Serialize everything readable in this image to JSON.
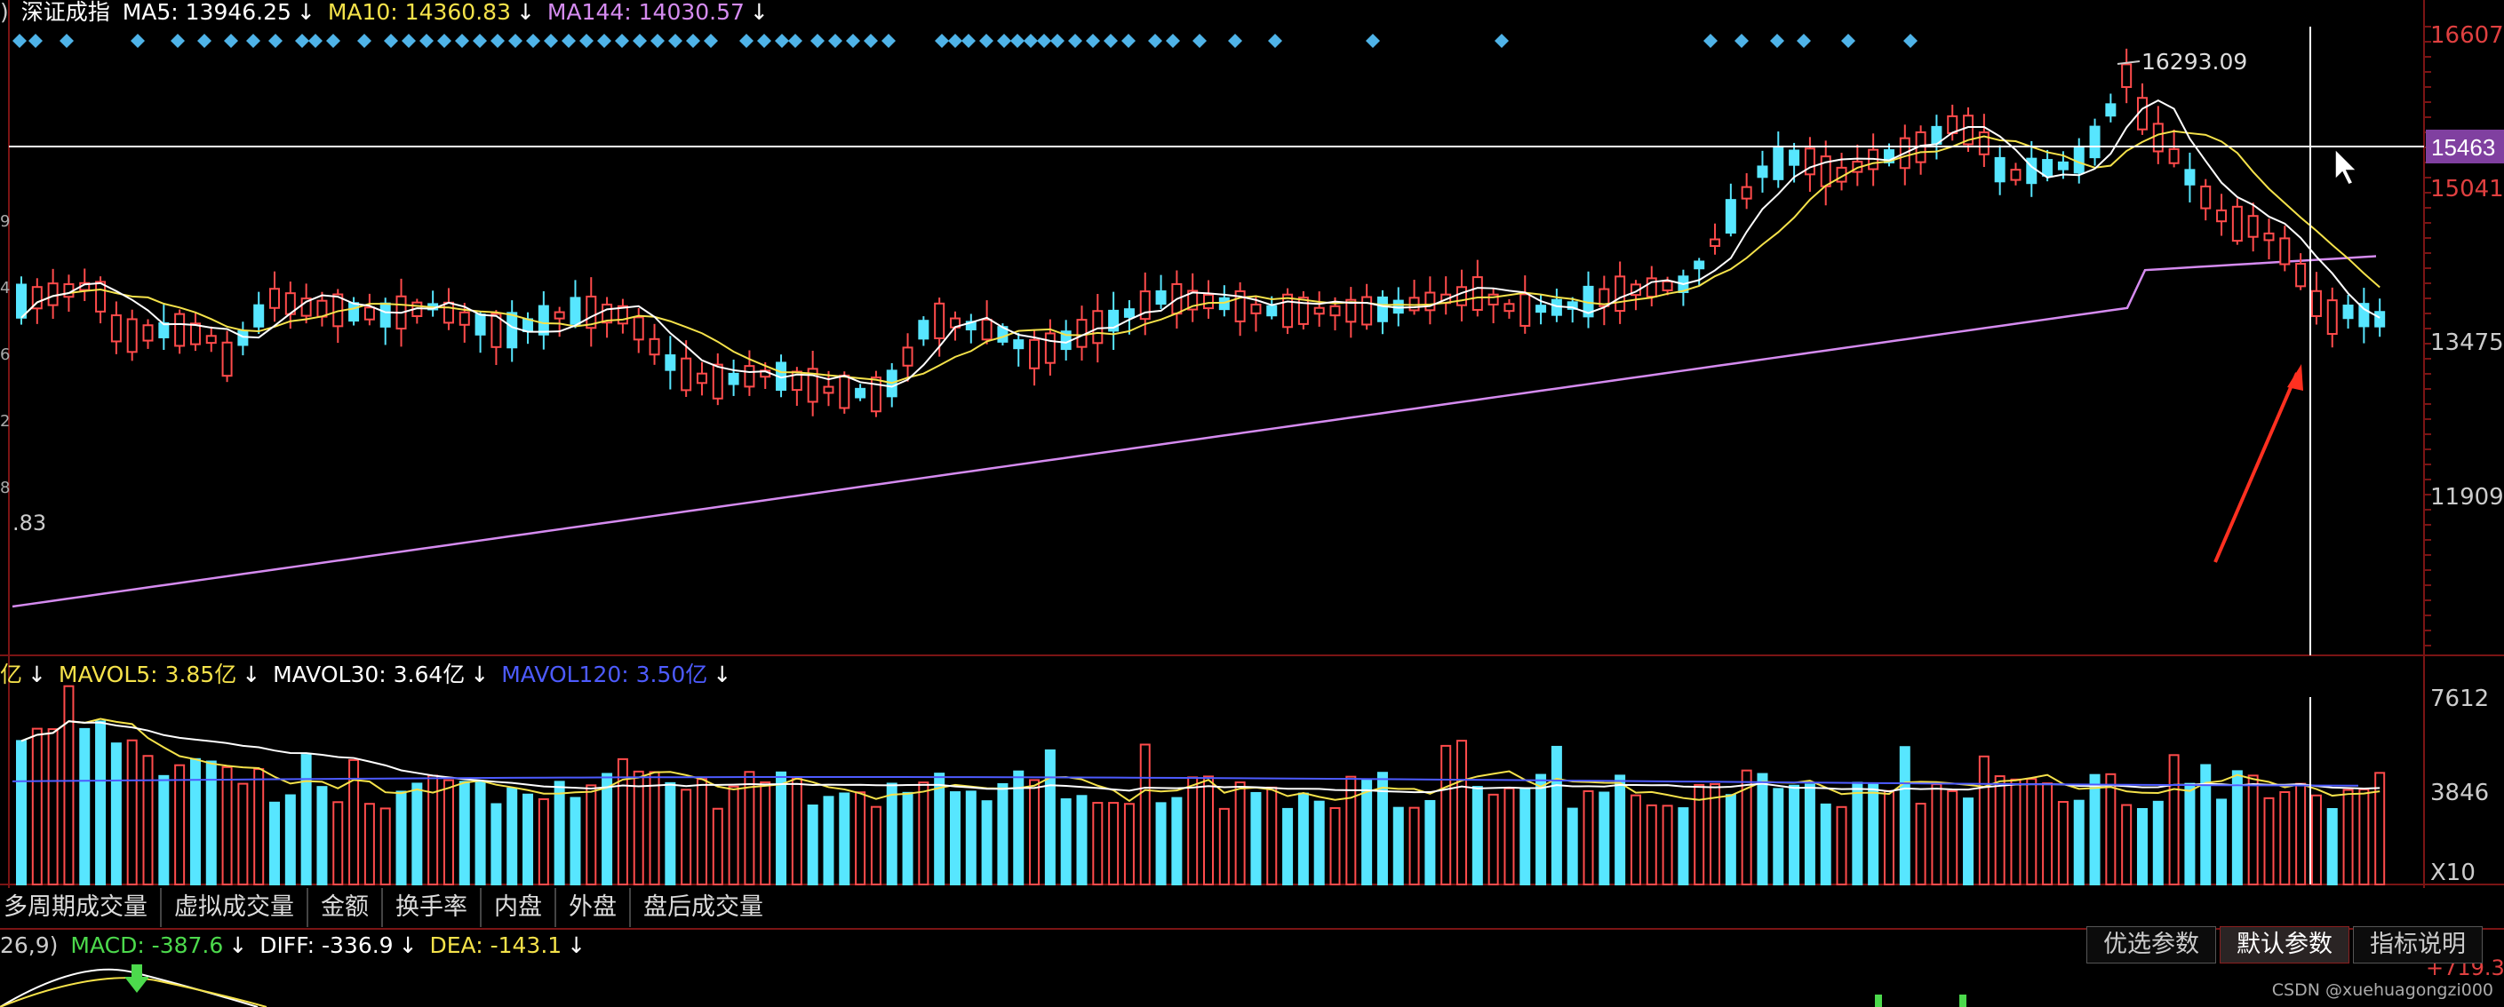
{
  "price_legend": {
    "prefix": ")",
    "index_name": "深证成指",
    "ma5": "MA5: 13946.25",
    "ma10": "MA10: 14360.83",
    "ma144": "MA144: 14030.57",
    "arrow": "↓"
  },
  "price_axis": [
    "16607",
    "15041",
    "13475",
    "11909"
  ],
  "crosshair_price": "15463",
  "peak_label": "16293.09",
  "left_edge_value": ".83",
  "left_edge_digits": [
    "9",
    "4",
    "6",
    "2",
    "8"
  ],
  "volume_legend": {
    "prefix": "亿",
    "mavol5": "MAVOL5: 3.85亿",
    "mavol30": "MAVOL30: 3.64亿",
    "mavol120": "MAVOL120: 3.50亿",
    "arrow": "↓"
  },
  "volume_axis": [
    "7612",
    "3846",
    "X10"
  ],
  "tabs": [
    "多周期成交量",
    "虚拟成交量",
    "金额",
    "换手率",
    "内盘",
    "外盘",
    "盘后成交量"
  ],
  "macd_legend": {
    "params": "26,9)",
    "macd": "MACD: -387.6",
    "diff": "DIFF: -336.9",
    "dea": "DEA: -143.1",
    "arrow": "↓"
  },
  "macd_axis": "+719.3",
  "param_buttons": [
    "优选参数",
    "默认参数",
    "指标说明"
  ],
  "watermark": "CSDN @xuehuagongzi000",
  "colors": {
    "up": "#ff4b4b",
    "down": "#57e6ff",
    "ma5": "#ffffff",
    "ma10": "#f5e24a",
    "ma144": "#d58bf0",
    "mavol120": "#4d5bff",
    "macd": "#4cd94c",
    "axis_red": "#e04040",
    "crosshair_tag": "#8040a0",
    "diamond": "#4fb3e8",
    "annotation_arrow": "#ff3020"
  }
}
